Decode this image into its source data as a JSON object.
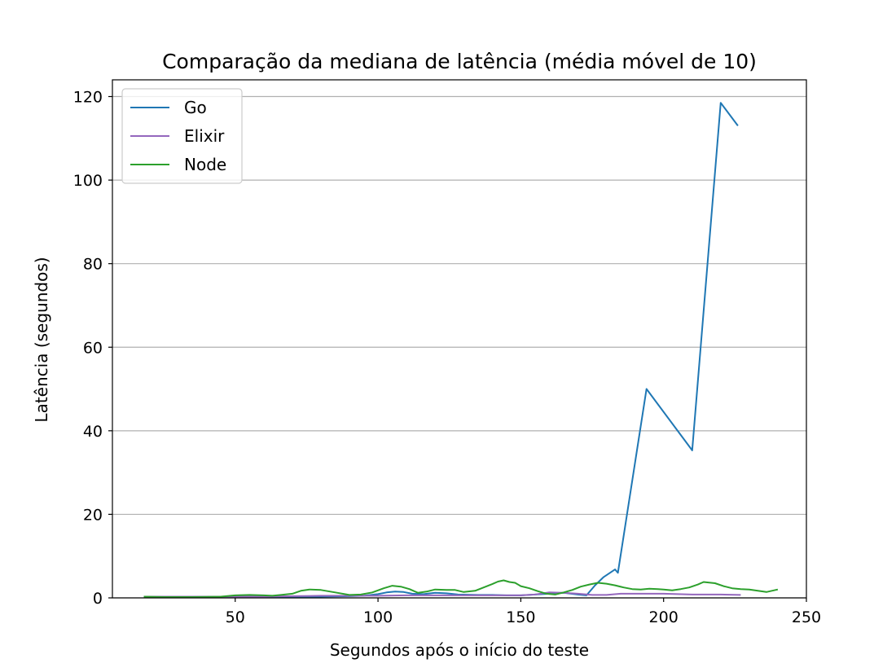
{
  "chart_data": {
    "type": "line",
    "title": "Comparação da mediana de latência (média móvel de 10)",
    "xlabel": "Segundos após o início do teste",
    "ylabel": "Latência (segundos)",
    "xlim": [
      7,
      250
    ],
    "ylim": [
      0,
      124
    ],
    "xticks": [
      50,
      100,
      150,
      200,
      250
    ],
    "yticks": [
      0,
      20,
      40,
      60,
      80,
      100,
      120
    ],
    "grid": "horizontal",
    "legend_position": "top-left",
    "series": [
      {
        "name": "Go",
        "color": "#1f77b4",
        "x": [
          18,
          30,
          40,
          50,
          60,
          70,
          80,
          90,
          95,
          100,
          103,
          106,
          109,
          112,
          116,
          120,
          124,
          128,
          135,
          140,
          145,
          150,
          155,
          160,
          165,
          170,
          173,
          176,
          179,
          183,
          184,
          194,
          210,
          220,
          226
        ],
        "y": [
          0.3,
          0.3,
          0.3,
          0.3,
          0.3,
          0.3,
          0.3,
          0.4,
          0.5,
          0.9,
          1.3,
          1.5,
          1.4,
          1.0,
          0.9,
          1.2,
          1.1,
          0.8,
          0.7,
          0.7,
          0.6,
          0.6,
          0.8,
          1.0,
          1.2,
          0.8,
          0.6,
          3.0,
          5.0,
          6.8,
          6.0,
          50.0,
          35.3,
          118.5,
          113.0
        ]
      },
      {
        "name": "Elixir",
        "color": "#9467bd",
        "x": [
          18,
          30,
          40,
          50,
          60,
          70,
          80,
          90,
          100,
          110,
          120,
          130,
          140,
          150,
          155,
          160,
          165,
          170,
          175,
          180,
          185,
          190,
          195,
          200,
          205,
          210,
          215,
          220,
          227
        ],
        "y": [
          0.3,
          0.3,
          0.3,
          0.3,
          0.3,
          0.4,
          0.5,
          0.5,
          0.5,
          0.6,
          0.6,
          0.6,
          0.6,
          0.6,
          0.8,
          1.3,
          1.2,
          1.0,
          0.7,
          0.7,
          1.0,
          1.0,
          1.0,
          1.0,
          0.9,
          0.8,
          0.8,
          0.8,
          0.7
        ]
      },
      {
        "name": "Node",
        "color": "#2ca02c",
        "x": [
          18,
          25,
          35,
          45,
          50,
          55,
          60,
          63,
          66,
          70,
          73,
          76,
          80,
          85,
          90,
          94,
          98,
          102,
          105,
          108,
          111,
          114,
          117,
          120,
          124,
          127,
          130,
          134,
          137,
          140,
          142,
          144,
          146,
          148,
          150,
          153,
          156,
          159,
          162,
          165,
          168,
          171,
          174,
          177,
          180,
          183,
          186,
          189,
          192,
          195,
          198,
          200,
          203,
          206,
          209,
          212,
          214,
          218,
          221,
          224,
          227,
          230,
          233,
          236,
          240
        ],
        "y": [
          0.3,
          0.2,
          0.2,
          0.3,
          0.6,
          0.7,
          0.6,
          0.5,
          0.7,
          1.0,
          1.7,
          2.0,
          1.9,
          1.3,
          0.7,
          0.8,
          1.3,
          2.3,
          2.9,
          2.7,
          2.1,
          1.2,
          1.5,
          2.0,
          1.9,
          1.9,
          1.4,
          1.7,
          2.5,
          3.3,
          3.9,
          4.2,
          3.8,
          3.6,
          2.8,
          2.3,
          1.6,
          1.0,
          0.8,
          1.3,
          1.9,
          2.7,
          3.2,
          3.6,
          3.4,
          3.0,
          2.5,
          2.1,
          2.0,
          2.2,
          2.1,
          2.0,
          1.8,
          2.1,
          2.5,
          3.2,
          3.8,
          3.5,
          2.8,
          2.3,
          2.1,
          2.0,
          1.7,
          1.4,
          2.0
        ]
      }
    ]
  }
}
